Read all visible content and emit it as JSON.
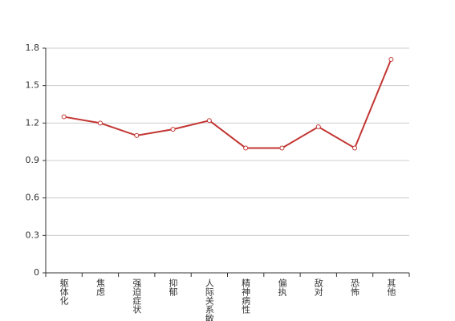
{
  "chart_data": {
    "type": "line",
    "categories": [
      "躯体化",
      "焦虑",
      "强迫症状",
      "抑郁",
      "人际关系敏感",
      "精神病性",
      "偏执",
      "敌对",
      "恐怖",
      "其他"
    ],
    "series": [
      {
        "color": "#c23531",
        "values": [
          1.25,
          1.2,
          1.1,
          1.15,
          1.22,
          1.0,
          1.0,
          1.17,
          1.0,
          1.71
        ]
      }
    ],
    "ylim": [
      0,
      1.8
    ],
    "yticks": [
      0,
      0.3,
      0.6,
      0.9,
      1.2,
      1.5,
      1.8
    ],
    "grid": true
  }
}
